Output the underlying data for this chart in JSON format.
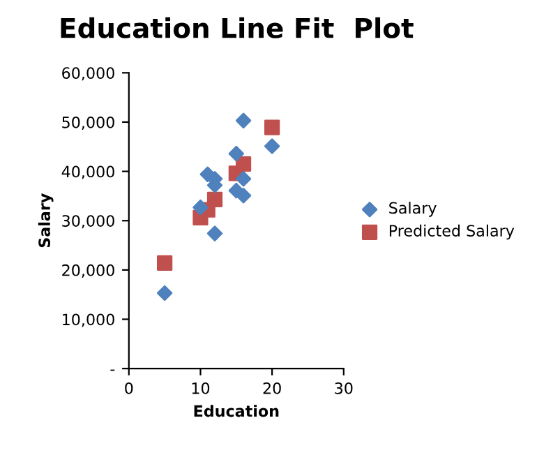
{
  "chart_data": {
    "type": "scatter",
    "title": "Education Line Fit  Plot",
    "xlabel": "Education",
    "ylabel": "Salary",
    "xlim": [
      0,
      30
    ],
    "xticks": [
      0,
      10,
      20,
      30
    ],
    "ylim": [
      0,
      60000
    ],
    "yticks": [
      {
        "value": 0,
        "label": "-"
      },
      {
        "value": 10000,
        "label": "10,000"
      },
      {
        "value": 20000,
        "label": "20,000"
      },
      {
        "value": 30000,
        "label": "30,000"
      },
      {
        "value": 40000,
        "label": "40,000"
      },
      {
        "value": 50000,
        "label": "50,000"
      },
      {
        "value": 60000,
        "label": "60,000"
      }
    ],
    "grid": false,
    "legend": "right",
    "series": [
      {
        "name": "Salary",
        "color": "#4f81bd",
        "marker": "diamond",
        "x": [
          5,
          10,
          11,
          12,
          12,
          12,
          15,
          15,
          16,
          16,
          16,
          20
        ],
        "values": [
          15300,
          32700,
          39400,
          38500,
          37200,
          27400,
          43600,
          36100,
          35100,
          38500,
          50300,
          45100
        ]
      },
      {
        "name": "Predicted Salary",
        "color": "#c0504d",
        "marker": "square",
        "x": [
          5,
          10,
          11,
          12,
          15,
          16,
          20
        ],
        "values": [
          21400,
          30600,
          32200,
          34300,
          39600,
          41500,
          48900
        ]
      }
    ]
  }
}
